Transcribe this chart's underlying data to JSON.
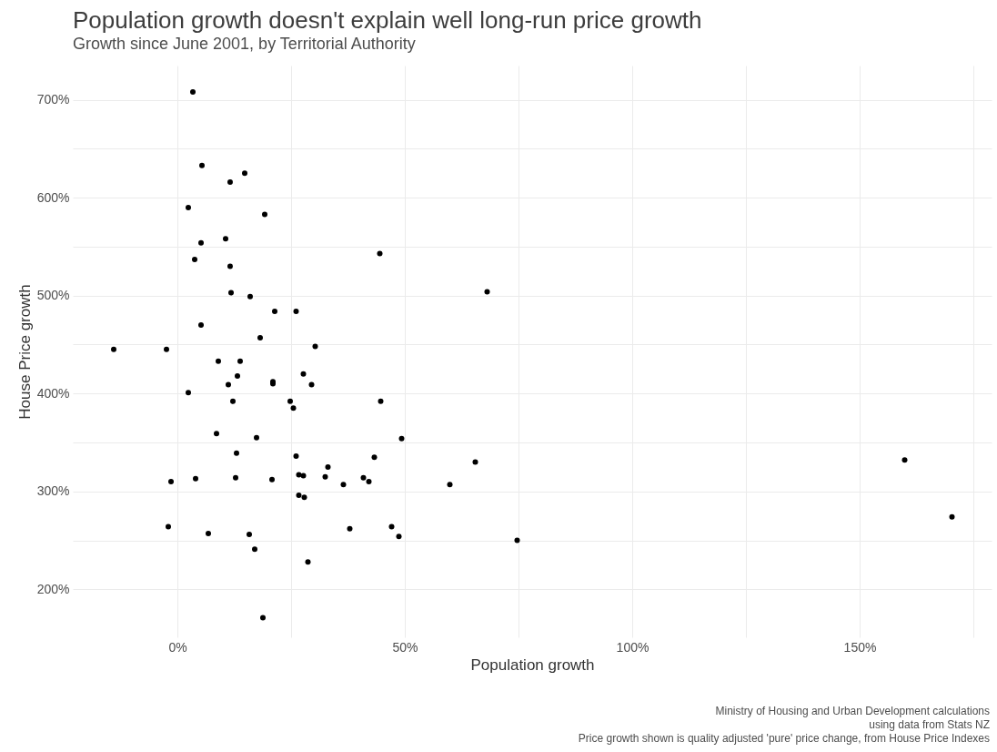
{
  "chart_data": {
    "type": "scatter",
    "title": "Population growth doesn't explain well long-run price growth",
    "subtitle": "Growth since June 2001, by Territorial Authority",
    "xlabel": "Population growth",
    "ylabel": "House Price growth",
    "annotations": [
      "Ministry of Housing and Urban Development calculations",
      "using data from Stats NZ",
      "Price growth shown is quality adjusted 'pure' price change, from House Price Indexes"
    ],
    "xlim": [
      -23,
      179
    ],
    "ylim": [
      151,
      735
    ],
    "xticks": [
      {
        "value": 0,
        "label": "0%"
      },
      {
        "value": 25,
        "label": null
      },
      {
        "value": 50,
        "label": "50%"
      },
      {
        "value": 75,
        "label": null
      },
      {
        "value": 100,
        "label": "100%"
      },
      {
        "value": 125,
        "label": null
      },
      {
        "value": 150,
        "label": "150%"
      },
      {
        "value": 175,
        "label": null
      }
    ],
    "yticks": [
      {
        "value": 200,
        "label": "200%"
      },
      {
        "value": 250,
        "label": null
      },
      {
        "value": 300,
        "label": "300%"
      },
      {
        "value": 350,
        "label": null
      },
      {
        "value": 400,
        "label": "400%"
      },
      {
        "value": 450,
        "label": null
      },
      {
        "value": 500,
        "label": "500%"
      },
      {
        "value": 550,
        "label": null
      },
      {
        "value": 600,
        "label": "600%"
      },
      {
        "value": 650,
        "label": null
      },
      {
        "value": 700,
        "label": "700%"
      }
    ],
    "grid": true,
    "marker": "circle",
    "series": [
      {
        "color": "#000000",
        "x": [
          -14.0,
          -2.4,
          -1.4,
          -2.0,
          3.4,
          5.4,
          2.4,
          5.2,
          3.8,
          5.2,
          2.4,
          4.0,
          6.8,
          8.6,
          9.0,
          10.6,
          11.6,
          14.8,
          11.6,
          11.8,
          11.2,
          12.2,
          13.2,
          13.8,
          13.0,
          12.8,
          19.2,
          16.0,
          18.2,
          17.4,
          15.8,
          17.0,
          18.8,
          21.4,
          21.0,
          21.0,
          20.8,
          26.1,
          24.8,
          25.5,
          30.3,
          27.7,
          29.5,
          26.1,
          26.7,
          27.7,
          26.7,
          27.9,
          28.7,
          33.1,
          32.5,
          36.5,
          40.9,
          42.1,
          37.9,
          44.5,
          44.7,
          43.3,
          47.1,
          48.7,
          49.3,
          59.9,
          65.5,
          68.1,
          74.7,
          159.9,
          170.3
        ],
        "values": [
          445,
          445,
          310,
          264,
          708,
          633,
          590,
          554,
          537,
          470,
          401,
          313,
          257,
          359,
          433,
          558,
          616,
          625,
          530,
          503,
          409,
          392,
          418,
          433,
          339,
          314,
          583,
          499,
          457,
          355,
          256,
          241,
          171,
          484,
          412,
          410,
          312,
          484,
          392,
          385,
          448,
          420,
          409,
          336,
          317,
          316,
          296,
          294,
          228,
          325,
          315,
          307,
          314,
          310,
          262,
          543,
          392,
          335,
          264,
          254,
          354,
          307,
          330,
          504,
          250,
          332,
          274
        ]
      }
    ]
  }
}
